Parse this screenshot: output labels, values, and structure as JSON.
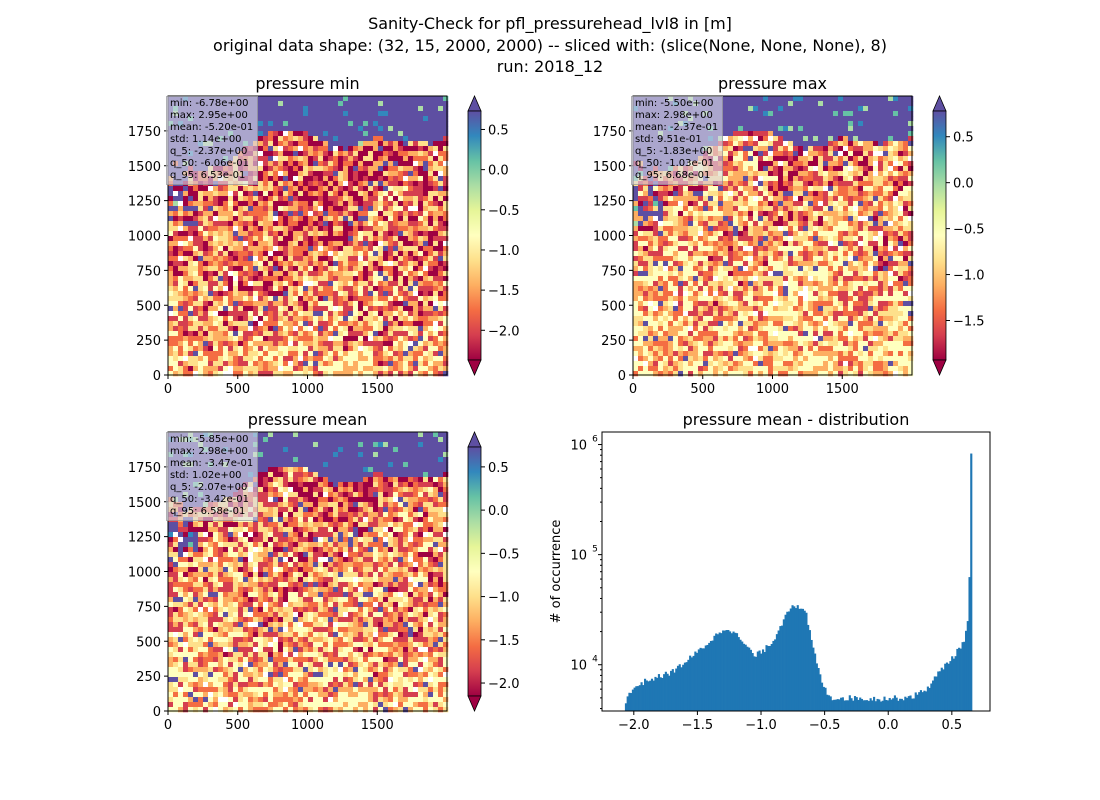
{
  "figure": {
    "title_lines": [
      "Sanity-Check for pfl_pressurehead_lvl8 in [m]",
      "original data shape: (32, 15, 2000, 2000) -- sliced with: (slice(None, None, None), 8)",
      "run: 2018_12"
    ]
  },
  "chart_data": [
    {
      "type": "heatmap",
      "title": "pressure min",
      "xlim": [
        0,
        2000
      ],
      "ylim": [
        0,
        2000
      ],
      "x_ticks": [
        0,
        500,
        1000,
        1500
      ],
      "y_ticks": [
        0,
        250,
        500,
        750,
        1000,
        1250,
        1500,
        1750
      ],
      "colormap": "Spectral",
      "colorbar": {
        "range": [
          -2.37,
          0.73
        ],
        "ticks": [
          "0.5",
          "0.0",
          "−0.5",
          "−1.0",
          "−1.5",
          "−2.0"
        ],
        "tick_values": [
          0.5,
          0.0,
          -0.5,
          -1.0,
          -1.5,
          -2.0
        ],
        "extend": "both"
      },
      "stats": [
        "min: -6.78e+00",
        "max: 2.95e+00",
        "mean: -5.20e-01",
        "std: 1.14e+00",
        "q_5: -2.37e+00",
        "q_50: -6.06e-01",
        "q_95: 6.53e-01"
      ]
    },
    {
      "type": "heatmap",
      "title": "pressure max",
      "xlim": [
        0,
        2000
      ],
      "ylim": [
        0,
        2000
      ],
      "x_ticks": [
        0,
        500,
        1000,
        1500
      ],
      "y_ticks": [
        0,
        250,
        500,
        750,
        1000,
        1250,
        1500,
        1750
      ],
      "colormap": "Spectral",
      "colorbar": {
        "range": [
          -1.93,
          0.78
        ],
        "ticks": [
          "0.5",
          "0.0",
          "−0.5",
          "−1.0",
          "−1.5"
        ],
        "tick_values": [
          0.5,
          0.0,
          -0.5,
          -1.0,
          -1.5
        ],
        "extend": "both"
      },
      "stats": [
        "min: -5.50e+00",
        "max: 2.98e+00",
        "mean: -2.37e-01",
        "std: 9.51e-01",
        "q_5: -1.83e+00",
        "q_50: -1.03e-01",
        "q_95: 6.68e-01"
      ]
    },
    {
      "type": "heatmap",
      "title": "pressure mean",
      "xlim": [
        0,
        2000
      ],
      "ylim": [
        0,
        2000
      ],
      "x_ticks": [
        0,
        500,
        1000,
        1500
      ],
      "y_ticks": [
        0,
        250,
        500,
        750,
        1000,
        1250,
        1500,
        1750
      ],
      "colormap": "Spectral",
      "colorbar": {
        "range": [
          -2.15,
          0.73
        ],
        "ticks": [
          "0.5",
          "0.0",
          "−0.5",
          "−1.0",
          "−1.5",
          "−2.0"
        ],
        "tick_values": [
          0.5,
          0.0,
          -0.5,
          -1.0,
          -1.5,
          -2.0
        ],
        "extend": "both"
      },
      "stats": [
        "min: -5.85e+00",
        "max: 2.98e+00",
        "mean: -3.47e-01",
        "std: 1.02e+00",
        "q_5: -2.07e+00",
        "q_50: -3.42e-01",
        "q_95: 6.58e-01"
      ]
    },
    {
      "type": "bar",
      "title": "pressure mean - distribution",
      "ylabel": "# of occurrence",
      "xlabel": "",
      "xlim": [
        -2.25,
        0.8
      ],
      "ylim": [
        3800,
        1300000
      ],
      "yscale": "log",
      "x_ticks": [
        -2.0,
        -1.5,
        -1.0,
        -0.5,
        0.0,
        0.5
      ],
      "x_tick_labels": [
        "−2.0",
        "−1.5",
        "−1.0",
        "−0.5",
        "0.0",
        "0.5"
      ],
      "y_tick_labels": [
        {
          "value": 10000,
          "base": "10",
          "exp": "4"
        },
        {
          "value": 100000,
          "base": "10",
          "exp": "5"
        },
        {
          "value": 1000000,
          "base": "10",
          "exp": "6"
        }
      ],
      "color": "#1f77b4",
      "bin_range": [
        -2.07,
        0.658
      ],
      "profile": [
        [
          -2.07,
          4600
        ],
        [
          -2.0,
          6200
        ],
        [
          -1.9,
          7200
        ],
        [
          -1.8,
          7800
        ],
        [
          -1.7,
          8600
        ],
        [
          -1.6,
          10500
        ],
        [
          -1.5,
          13000
        ],
        [
          -1.4,
          16500
        ],
        [
          -1.3,
          21000
        ],
        [
          -1.25,
          21500
        ],
        [
          -1.2,
          19000
        ],
        [
          -1.1,
          14000
        ],
        [
          -1.05,
          12000
        ],
        [
          -1.0,
          13000
        ],
        [
          -0.95,
          14500
        ],
        [
          -0.9,
          17000
        ],
        [
          -0.85,
          22000
        ],
        [
          -0.8,
          30000
        ],
        [
          -0.75,
          36000
        ],
        [
          -0.7,
          32000
        ],
        [
          -0.65,
          30000
        ],
        [
          -0.6,
          16000
        ],
        [
          -0.55,
          9000
        ],
        [
          -0.5,
          6000
        ],
        [
          -0.45,
          5000
        ],
        [
          -0.3,
          5000
        ],
        [
          -0.1,
          4900
        ],
        [
          0.1,
          5000
        ],
        [
          0.2,
          5200
        ],
        [
          0.3,
          6000
        ],
        [
          0.4,
          8500
        ],
        [
          0.45,
          10000
        ],
        [
          0.5,
          11500
        ],
        [
          0.55,
          13500
        ],
        [
          0.59,
          16000
        ],
        [
          0.62,
          22000
        ],
        [
          0.635,
          40000
        ],
        [
          0.645,
          200000
        ],
        [
          0.652,
          950000
        ],
        [
          0.658,
          190000
        ]
      ]
    }
  ]
}
